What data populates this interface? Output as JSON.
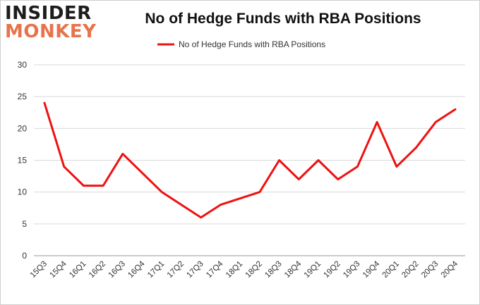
{
  "brand": {
    "line1": "INSIDER",
    "line2": "MONKEY"
  },
  "chart_data": {
    "type": "line",
    "title": "No of Hedge Funds with RBA Positions",
    "categories": [
      "15Q3",
      "15Q4",
      "16Q1",
      "16Q2",
      "16Q3",
      "16Q4",
      "17Q1",
      "17Q2",
      "17Q3",
      "17Q4",
      "18Q1",
      "18Q2",
      "18Q3",
      "18Q4",
      "19Q1",
      "19Q2",
      "19Q3",
      "19Q4",
      "20Q1",
      "20Q2",
      "20Q3",
      "20Q4"
    ],
    "series": [
      {
        "name": "No of Hedge Funds with RBA Positions",
        "values": [
          24,
          14,
          11,
          11,
          16,
          13,
          10,
          8,
          6,
          8,
          9,
          10,
          15,
          12,
          15,
          12,
          14,
          21,
          14,
          17,
          21,
          23
        ],
        "color": "#ee1111"
      }
    ],
    "ylim": [
      0,
      30
    ],
    "yticks": [
      0,
      5,
      10,
      15,
      20,
      25,
      30
    ],
    "grid": true,
    "legend": "top-center"
  }
}
